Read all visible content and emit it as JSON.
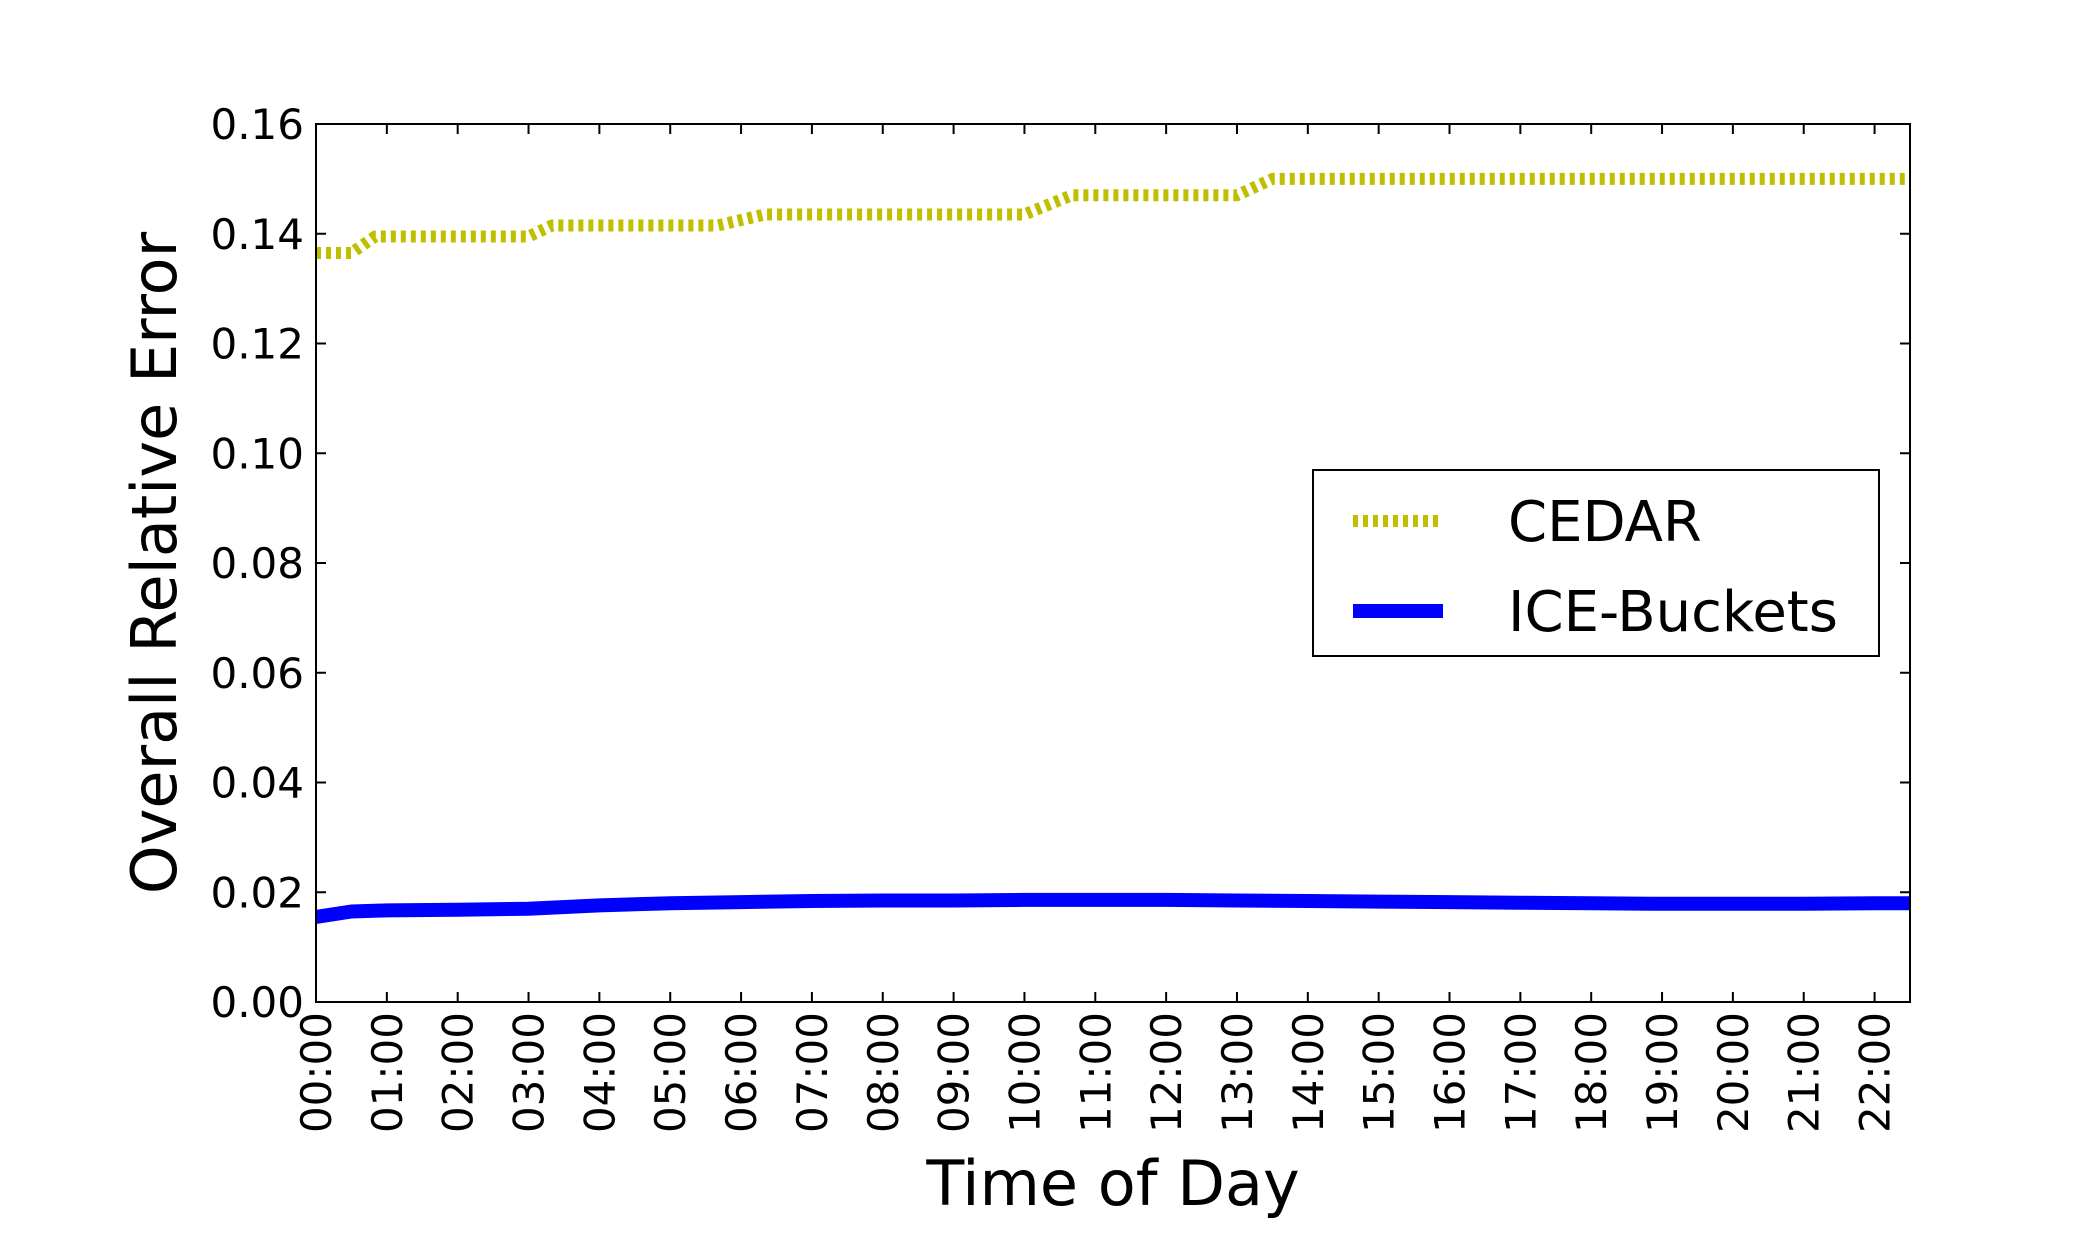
{
  "chart_data": {
    "type": "line",
    "title": "",
    "xlabel": "Time of Day",
    "ylabel": "Overall Relative Error",
    "xlim": [
      "00:00",
      "22:30"
    ],
    "ylim": [
      0,
      0.16
    ],
    "x_ticks": [
      "00:00",
      "01:00",
      "02:00",
      "03:00",
      "04:00",
      "05:00",
      "06:00",
      "07:00",
      "08:00",
      "09:00",
      "10:00",
      "11:00",
      "12:00",
      "13:00",
      "14:00",
      "15:00",
      "16:00",
      "17:00",
      "18:00",
      "19:00",
      "20:00",
      "21:00",
      "22:00"
    ],
    "y_ticks": [
      "0.00",
      "0.02",
      "0.04",
      "0.06",
      "0.08",
      "0.10",
      "0.12",
      "0.14",
      "0.16"
    ],
    "grid": false,
    "legend": {
      "position": "right",
      "entries": [
        "CEDAR",
        "ICE-Buckets"
      ]
    },
    "series": [
      {
        "name": "CEDAR",
        "color": "#bfbf00",
        "style": "dotted",
        "points": [
          [
            "00:00",
            0.1365
          ],
          [
            "00:30",
            0.1365
          ],
          [
            "00:50",
            0.1395
          ],
          [
            "01:30",
            0.1395
          ],
          [
            "02:00",
            0.1395
          ],
          [
            "02:30",
            0.1395
          ],
          [
            "03:00",
            0.1395
          ],
          [
            "03:20",
            0.1415
          ],
          [
            "04:00",
            0.1415
          ],
          [
            "05:00",
            0.1415
          ],
          [
            "05:40",
            0.1415
          ],
          [
            "06:20",
            0.1435
          ],
          [
            "07:00",
            0.1435
          ],
          [
            "08:00",
            0.1435
          ],
          [
            "09:00",
            0.1435
          ],
          [
            "10:00",
            0.1435
          ],
          [
            "10:40",
            0.147
          ],
          [
            "11:30",
            0.147
          ],
          [
            "12:00",
            0.147
          ],
          [
            "12:30",
            0.147
          ],
          [
            "13:00",
            0.147
          ],
          [
            "13:30",
            0.15
          ],
          [
            "14:00",
            0.15
          ],
          [
            "15:00",
            0.15
          ],
          [
            "16:00",
            0.15
          ],
          [
            "17:00",
            0.15
          ],
          [
            "18:00",
            0.15
          ],
          [
            "19:00",
            0.15
          ],
          [
            "20:00",
            0.15
          ],
          [
            "21:00",
            0.15
          ],
          [
            "22:00",
            0.15
          ],
          [
            "22:30",
            0.15
          ]
        ]
      },
      {
        "name": "ICE-Buckets",
        "color": "#0000ff",
        "style": "solid",
        "points": [
          [
            "00:00",
            0.0155
          ],
          [
            "00:30",
            0.0165
          ],
          [
            "01:00",
            0.0167
          ],
          [
            "02:00",
            0.0168
          ],
          [
            "03:00",
            0.017
          ],
          [
            "04:00",
            0.0176
          ],
          [
            "05:00",
            0.018
          ],
          [
            "06:00",
            0.0182
          ],
          [
            "07:00",
            0.0184
          ],
          [
            "08:00",
            0.0185
          ],
          [
            "09:00",
            0.0185
          ],
          [
            "10:00",
            0.0186
          ],
          [
            "11:00",
            0.0186
          ],
          [
            "12:00",
            0.0186
          ],
          [
            "13:00",
            0.0185
          ],
          [
            "14:00",
            0.0184
          ],
          [
            "15:00",
            0.0183
          ],
          [
            "16:00",
            0.0182
          ],
          [
            "17:00",
            0.0181
          ],
          [
            "18:00",
            0.018
          ],
          [
            "19:00",
            0.0179
          ],
          [
            "20:00",
            0.0179
          ],
          [
            "21:00",
            0.0179
          ],
          [
            "22:00",
            0.018
          ],
          [
            "22:30",
            0.018
          ]
        ]
      }
    ]
  }
}
